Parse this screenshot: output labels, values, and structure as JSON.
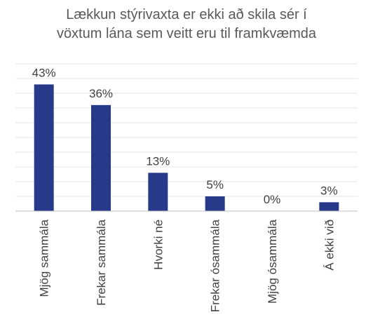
{
  "chart_data": {
    "type": "bar",
    "title_lines": [
      "Lækkun stýrivaxta er ekki að skila sér í",
      "vöxtum lána sem veitt eru til framkvæmda"
    ],
    "categories": [
      "Mjög sammála",
      "Frekar sammála",
      "Hvorki né",
      "Frekar ósammála",
      "Mjög ósammála",
      "Á ekki við"
    ],
    "values": [
      43,
      36,
      13,
      5,
      0,
      3
    ],
    "data_labels": [
      "43%",
      "36%",
      "13%",
      "5%",
      "0%",
      "3%"
    ],
    "ylim": [
      0,
      50
    ],
    "grid": true,
    "legend": "none",
    "colors": {
      "bar": "#273a8a",
      "grid": "#e6e6e6",
      "axis": "#bfbfbf",
      "text": "#404040",
      "title": "#595959"
    }
  }
}
